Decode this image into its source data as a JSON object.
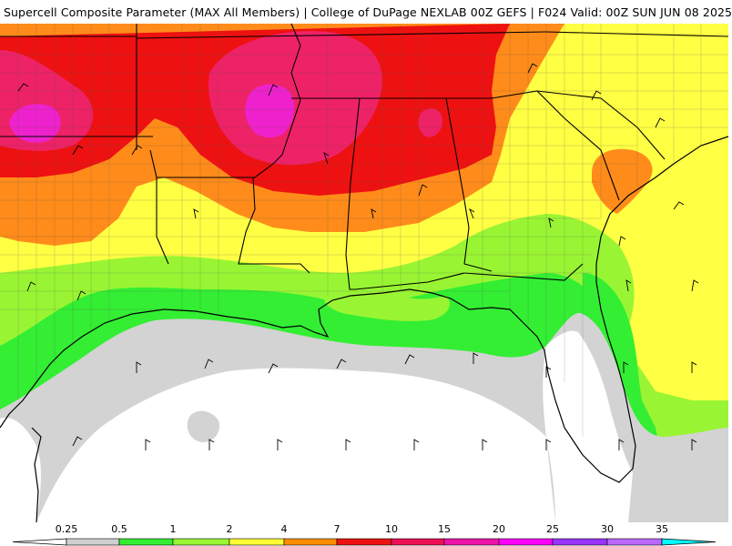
{
  "title": "Supercell Composite Parameter (MAX All Members) | College of DuPage NEXLAB  00Z GEFS | F024 Valid: 00Z SUN JUN 08 2025",
  "legend": {
    "labels": [
      "0.25",
      "0.5",
      "1",
      "2",
      "4",
      "7",
      "10",
      "15",
      "20",
      "25",
      "30",
      "35"
    ],
    "colors": [
      "#ffffff",
      "#cfcfcf",
      "#33ee33",
      "#99f533",
      "#ffff33",
      "#ff8c00",
      "#ee1111",
      "#ee0f55",
      "#ee11aa",
      "#ff00ff",
      "#9933ff",
      "#bb66ff",
      "#00ffff"
    ]
  },
  "map_colors": {
    "white": "#ffffff",
    "gray": "#d3d3d3",
    "green": "#33ee33",
    "lime": "#99f533",
    "yellow": "#ffff44",
    "orange": "#ff8c1a",
    "red": "#ee1111",
    "pinkred": "#ee2266",
    "magenta": "#ee22cc",
    "boundary": "#000000"
  }
}
